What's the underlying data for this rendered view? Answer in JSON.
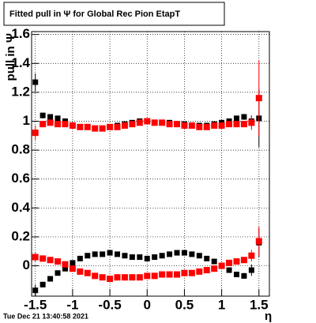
{
  "chart_data": {
    "type": "scatter",
    "title": "Fitted pull in  Ψ  for Global Rec Pion EtapT",
    "y_label": "pull in  Ψ",
    "x_label": "η",
    "timestamp": "Tue Dec 21 13:40:58 2021",
    "x": [
      -1.5,
      -1.4,
      -1.3,
      -1.2,
      -1.1,
      -1.0,
      -0.9,
      -0.8,
      -0.7,
      -0.6,
      -0.5,
      -0.4,
      -0.3,
      -0.2,
      -0.1,
      0,
      0.1,
      0.2,
      0.3,
      0.4,
      0.5,
      0.6,
      0.7,
      0.8,
      0.9,
      1.0,
      1.1,
      1.2,
      1.3,
      1.4,
      1.5
    ],
    "series": [
      {
        "color": "#000000",
        "values": [
          1.27,
          1.04,
          1.03,
          1.02,
          1.0,
          0.97,
          0.96,
          0.96,
          0.95,
          0.95,
          0.96,
          0.97,
          0.98,
          0.99,
          1.0,
          1.0,
          0.99,
          0.99,
          0.99,
          0.98,
          0.98,
          0.97,
          0.97,
          0.97,
          0.98,
          0.99,
          1.0,
          1.02,
          1.03,
          1.0,
          1.02
        ],
        "errors": [
          0.06,
          0.02,
          0.01,
          0.01,
          0.01,
          0.01,
          0.01,
          0.01,
          0.01,
          0.01,
          0.01,
          0.01,
          0.01,
          0.01,
          0.01,
          0.01,
          0.01,
          0.01,
          0.01,
          0.01,
          0.01,
          0.01,
          0.01,
          0.01,
          0.01,
          0.01,
          0.01,
          0.01,
          0.02,
          0.04,
          0.2
        ]
      },
      {
        "color": "#ff0000",
        "values": [
          0.92,
          0.98,
          0.99,
          0.98,
          0.98,
          0.97,
          0.96,
          0.96,
          0.95,
          0.95,
          0.96,
          0.96,
          0.97,
          0.98,
          0.99,
          1.0,
          0.99,
          0.99,
          0.98,
          0.98,
          0.97,
          0.97,
          0.96,
          0.96,
          0.97,
          0.97,
          0.98,
          0.98,
          0.98,
          0.99,
          1.16
        ],
        "errors": [
          0.05,
          0.02,
          0.01,
          0.01,
          0.01,
          0.01,
          0.01,
          0.01,
          0.01,
          0.01,
          0.01,
          0.01,
          0.01,
          0.01,
          0.01,
          0.01,
          0.01,
          0.01,
          0.01,
          0.01,
          0.01,
          0.01,
          0.01,
          0.01,
          0.01,
          0.01,
          0.01,
          0.01,
          0.02,
          0.05,
          0.26
        ]
      },
      {
        "color": "#000000",
        "values": [
          -0.17,
          -0.13,
          -0.09,
          -0.05,
          -0.02,
          0.02,
          0.05,
          0.07,
          0.08,
          0.08,
          0.09,
          0.08,
          0.07,
          0.06,
          0.06,
          0.05,
          0.06,
          0.07,
          0.08,
          0.09,
          0.09,
          0.08,
          0.07,
          0.05,
          0.03,
          0.0,
          -0.03,
          -0.06,
          -0.07,
          -0.03,
          0.16
        ],
        "errors": [
          0.04,
          0.02,
          0.01,
          0.01,
          0.01,
          0.01,
          0.01,
          0.01,
          0.01,
          0.01,
          0.01,
          0.01,
          0.01,
          0.01,
          0.01,
          0.01,
          0.01,
          0.01,
          0.01,
          0.01,
          0.01,
          0.01,
          0.01,
          0.01,
          0.01,
          0.01,
          0.01,
          0.01,
          0.02,
          0.04,
          0.1
        ]
      },
      {
        "color": "#ff0000",
        "values": [
          0.06,
          0.05,
          0.04,
          0.03,
          0.01,
          -0.02,
          -0.04,
          -0.05,
          -0.07,
          -0.08,
          -0.09,
          -0.08,
          -0.08,
          -0.08,
          -0.08,
          -0.07,
          -0.07,
          -0.06,
          -0.06,
          -0.06,
          -0.05,
          -0.05,
          -0.04,
          -0.03,
          -0.02,
          0.0,
          0.02,
          0.03,
          0.04,
          0.07,
          0.17
        ],
        "errors": [
          0.03,
          0.02,
          0.01,
          0.01,
          0.01,
          0.01,
          0.01,
          0.01,
          0.01,
          0.01,
          0.01,
          0.01,
          0.01,
          0.01,
          0.01,
          0.01,
          0.01,
          0.01,
          0.01,
          0.01,
          0.01,
          0.01,
          0.01,
          0.01,
          0.01,
          0.01,
          0.01,
          0.01,
          0.02,
          0.04,
          0.1
        ]
      }
    ],
    "xlim": [
      -1.55,
      1.64
    ],
    "ylim": [
      -0.21,
      1.62
    ],
    "xticks": [
      -1.5,
      -1,
      -0.5,
      0,
      0.5,
      1,
      1.5
    ],
    "yticks": [
      0,
      0.2,
      0.4,
      0.6,
      0.8,
      1,
      1.2,
      1.4,
      1.6
    ],
    "grid": true
  }
}
